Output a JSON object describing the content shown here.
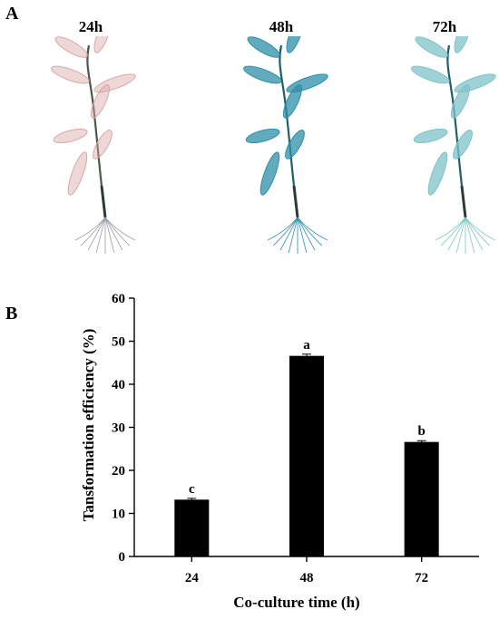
{
  "panels": {
    "a_label": "A",
    "b_label": "B"
  },
  "panel_a": {
    "time_labels": [
      "24h",
      "48h",
      "72h"
    ],
    "stain_colors": [
      "#d9a7a7",
      "#2e8fa8",
      "#7fc3c9"
    ]
  },
  "chart_data": {
    "type": "bar",
    "categories": [
      "24",
      "48",
      "72"
    ],
    "values": [
      13.2,
      46.6,
      26.6
    ],
    "errors": [
      0.3,
      0.4,
      0.3
    ],
    "significance": [
      "c",
      "a",
      "b"
    ],
    "xlabel": "Co-culture time (h)",
    "ylabel": "Tansformation efficiency (%)",
    "ylim": [
      0,
      60
    ],
    "yticks": [
      0,
      10,
      20,
      30,
      40,
      50,
      60
    ],
    "bar_color": "#000000",
    "grid": false,
    "legend": "none"
  }
}
